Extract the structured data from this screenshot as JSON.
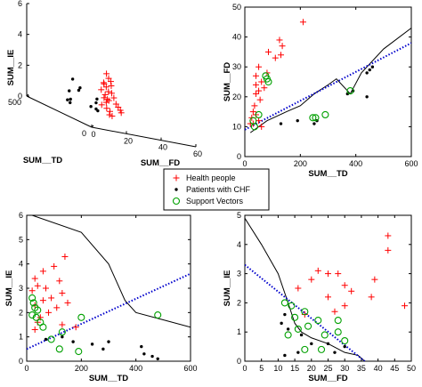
{
  "legend": {
    "entries": [
      {
        "label": "Health people",
        "marker": "plus",
        "color": "#ff0000"
      },
      {
        "label": "Patients with CHF",
        "marker": "dot",
        "color": "#000000"
      },
      {
        "label": "Support Vectors",
        "marker": "circle",
        "color": "#00a000"
      }
    ]
  },
  "chart_data": [
    {
      "type": "scatter",
      "panel": "3d",
      "xlabel": "SUM__TD",
      "ylabel": "SUM__FD",
      "zlabel": "SUM__IE",
      "xlim": [
        0,
        500
      ],
      "ylim": [
        0,
        60
      ],
      "zlim": [
        0,
        6
      ],
      "x_ticks": [
        "0",
        "500"
      ],
      "y_ticks": [
        "0",
        "20",
        "40",
        "60"
      ],
      "z_ticks": [
        "0",
        "2",
        "4",
        "6"
      ],
      "series": [
        {
          "name": "Health people",
          "points": [
            [
              20,
              10,
              3.6
            ],
            [
              30,
              12,
              3.3
            ],
            [
              15,
              8,
              3.0
            ],
            [
              40,
              14,
              3.1
            ],
            [
              25,
              9,
              2.9
            ],
            [
              35,
              11,
              2.7
            ],
            [
              50,
              15,
              2.8
            ],
            [
              20,
              7,
              2.5
            ],
            [
              45,
              13,
              2.4
            ],
            [
              30,
              10,
              2.2
            ],
            [
              60,
              16,
              2.3
            ],
            [
              25,
              9,
              2.0
            ],
            [
              40,
              12,
              1.9
            ],
            [
              70,
              18,
              2.0
            ],
            [
              35,
              11,
              1.7
            ],
            [
              55,
              14,
              1.8
            ],
            [
              30,
              8,
              1.5
            ],
            [
              80,
              20,
              1.6
            ],
            [
              45,
              12,
              1.3
            ],
            [
              90,
              22,
              1.4
            ],
            [
              60,
              15,
              1.1
            ],
            [
              100,
              24,
              1.2
            ],
            [
              50,
              14,
              0.9
            ],
            [
              120,
              26,
              1.0
            ],
            [
              70,
              17,
              0.8
            ]
          ]
        },
        {
          "name": "Patients with CHF",
          "points": [
            [
              280,
              10,
              2.2
            ],
            [
              250,
              12,
              1.8
            ],
            [
              300,
              15,
              1.5
            ],
            [
              200,
              18,
              1.4
            ],
            [
              320,
              11,
              1.3
            ],
            [
              260,
              22,
              1.0
            ],
            [
              350,
              14,
              0.7
            ],
            [
              220,
              20,
              0.6
            ],
            [
              400,
              16,
              0.5
            ],
            [
              300,
              25,
              0.5
            ],
            [
              380,
              28,
              0.4
            ],
            [
              420,
              19,
              0.3
            ]
          ]
        }
      ]
    },
    {
      "type": "scatter",
      "panel": "SUM__FD vs SUM__TD",
      "xlabel": "SUM__TD",
      "ylabel": "SUM__FD",
      "xlim": [
        0,
        600
      ],
      "ylim": [
        0,
        50
      ],
      "x_ticks": [
        0,
        200,
        400,
        600
      ],
      "y_ticks": [
        0,
        10,
        20,
        30,
        40,
        50
      ],
      "series": [
        {
          "name": "Health people",
          "points": [
            [
              210,
              45
            ],
            [
              125,
              39
            ],
            [
              135,
              37
            ],
            [
              85,
              35
            ],
            [
              130,
              34
            ],
            [
              110,
              33
            ],
            [
              50,
              30
            ],
            [
              80,
              28
            ],
            [
              40,
              27
            ],
            [
              60,
              25
            ],
            [
              40,
              24
            ],
            [
              70,
              23
            ],
            [
              50,
              22
            ],
            [
              40,
              21
            ],
            [
              55,
              19
            ],
            [
              35,
              17
            ],
            [
              30,
              15
            ],
            [
              40,
              14
            ],
            [
              25,
              13
            ],
            [
              50,
              12
            ],
            [
              30,
              11
            ],
            [
              20,
              11
            ],
            [
              60,
              10
            ]
          ]
        },
        {
          "name": "Patients with CHF",
          "points": [
            [
              460,
              30
            ],
            [
              450,
              29
            ],
            [
              440,
              28
            ],
            [
              390,
              22
            ],
            [
              440,
              20
            ],
            [
              370,
              21
            ],
            [
              190,
              12
            ],
            [
              260,
              12
            ],
            [
              250,
              11
            ],
            [
              130,
              11
            ]
          ]
        },
        {
          "name": "Support Vectors",
          "points": [
            [
              75,
              27
            ],
            [
              80,
              26
            ],
            [
              85,
              25
            ],
            [
              380,
              22
            ],
            [
              290,
              14
            ],
            [
              255,
              13
            ],
            [
              245,
              13
            ],
            [
              50,
              14
            ],
            [
              30,
              12
            ],
            [
              35,
              10
            ]
          ]
        }
      ],
      "lines": [
        {
          "style": "solid",
          "points": [
            [
              20,
              8
            ],
            [
              80,
              12
            ],
            [
              150,
              15
            ],
            [
              200,
              17
            ],
            [
              250,
              21
            ],
            [
              300,
              24
            ],
            [
              330,
              26
            ],
            [
              380,
              21
            ],
            [
              420,
              28
            ],
            [
              500,
              36
            ],
            [
              600,
              43
            ]
          ]
        },
        {
          "style": "dotted",
          "color": "#0000cc",
          "points": [
            [
              0,
              9
            ],
            [
              600,
              38
            ]
          ]
        }
      ]
    },
    {
      "type": "scatter",
      "panel": "SUM__IE vs SUM__TD",
      "xlabel": "SUM__TD",
      "ylabel": "SUM__IE",
      "xlim": [
        0,
        600
      ],
      "ylim": [
        0,
        6
      ],
      "x_ticks": [
        0,
        200,
        400,
        600
      ],
      "y_ticks": [
        0,
        1,
        2,
        3,
        4,
        5,
        6
      ],
      "series": [
        {
          "name": "Health people",
          "points": [
            [
              140,
              4.3
            ],
            [
              100,
              3.9
            ],
            [
              60,
              3.7
            ],
            [
              30,
              3.4
            ],
            [
              120,
              3.3
            ],
            [
              40,
              3.1
            ],
            [
              70,
              3.0
            ],
            [
              130,
              2.8
            ],
            [
              20,
              2.9
            ],
            [
              90,
              2.6
            ],
            [
              60,
              2.5
            ],
            [
              150,
              2.4
            ],
            [
              30,
              2.3
            ],
            [
              110,
              2.2
            ],
            [
              80,
              2.0
            ],
            [
              50,
              1.8
            ],
            [
              40,
              1.6
            ],
            [
              130,
              1.5
            ],
            [
              180,
              1.4
            ],
            [
              30,
              1.3
            ]
          ]
        },
        {
          "name": "Patients with CHF",
          "points": [
            [
              130,
              1.0
            ],
            [
              70,
              0.9
            ],
            [
              170,
              0.8
            ],
            [
              300,
              0.8
            ],
            [
              240,
              0.7
            ],
            [
              280,
              0.5
            ],
            [
              420,
              0.6
            ],
            [
              430,
              0.3
            ],
            [
              460,
              0.2
            ],
            [
              480,
              0.1
            ]
          ]
        },
        {
          "name": "Support Vectors",
          "points": [
            [
              20,
              2.6
            ],
            [
              25,
              2.4
            ],
            [
              30,
              2.2
            ],
            [
              40,
              2.1
            ],
            [
              20,
              1.9
            ],
            [
              35,
              1.8
            ],
            [
              50,
              1.6
            ],
            [
              60,
              1.4
            ],
            [
              130,
              1.2
            ],
            [
              200,
              1.8
            ],
            [
              480,
              1.9
            ],
            [
              90,
              0.9
            ],
            [
              190,
              0.4
            ],
            [
              120,
              0.5
            ]
          ]
        }
      ],
      "lines": [
        {
          "style": "solid",
          "points": [
            [
              20,
              6
            ],
            [
              200,
              5.3
            ],
            [
              300,
              4.0
            ],
            [
              360,
              2.5
            ],
            [
              400,
              2.0
            ],
            [
              500,
              1.7
            ],
            [
              600,
              1.4
            ]
          ]
        },
        {
          "style": "dotted",
          "color": "#0000cc",
          "points": [
            [
              0,
              0.5
            ],
            [
              600,
              3.6
            ]
          ]
        }
      ]
    },
    {
      "type": "scatter",
      "panel": "SUM__IE vs SUM__FD",
      "xlabel": "SUM__FD",
      "ylabel": "SUM__IE",
      "xlim": [
        0,
        50
      ],
      "ylim": [
        0,
        5
      ],
      "x_ticks": [
        0,
        5,
        10,
        15,
        20,
        25,
        30,
        35,
        40,
        45,
        50
      ],
      "y_ticks": [
        0,
        1,
        2,
        3,
        4,
        5
      ],
      "series": [
        {
          "name": "Health people",
          "points": [
            [
              43,
              4.3
            ],
            [
              43,
              3.8
            ],
            [
              22,
              3.1
            ],
            [
              25,
              3.0
            ],
            [
              28,
              3.0
            ],
            [
              20,
              2.8
            ],
            [
              30,
              2.6
            ],
            [
              39,
              2.8
            ],
            [
              32,
              2.4
            ],
            [
              16,
              2.5
            ],
            [
              25,
              2.2
            ],
            [
              38,
              2.2
            ],
            [
              30,
              1.9
            ],
            [
              48,
              1.9
            ],
            [
              18,
              1.6
            ],
            [
              27,
              1.7
            ]
          ]
        },
        {
          "name": "Patients with CHF",
          "points": [
            [
              12,
              1.6
            ],
            [
              11,
              1.3
            ],
            [
              13,
              1.1
            ],
            [
              17,
              0.9
            ],
            [
              20,
              0.6
            ],
            [
              25,
              0.6
            ],
            [
              30,
              0.5
            ],
            [
              27,
              0.3
            ],
            [
              16,
              0.3
            ],
            [
              12,
              0.2
            ]
          ]
        },
        {
          "name": "Support Vectors",
          "points": [
            [
              12,
              2.0
            ],
            [
              14,
              1.9
            ],
            [
              18,
              1.7
            ],
            [
              15,
              1.5
            ],
            [
              19,
              1.2
            ],
            [
              13,
              0.9
            ],
            [
              22,
              1.4
            ],
            [
              28,
              1.4
            ],
            [
              16,
              1.1
            ],
            [
              24,
              0.9
            ],
            [
              30,
              0.7
            ],
            [
              18,
              0.4
            ],
            [
              23,
              0.4
            ],
            [
              28,
              1.0
            ]
          ]
        }
      ],
      "lines": [
        {
          "style": "solid",
          "points": [
            [
              0,
              4.9
            ],
            [
              5,
              4.0
            ],
            [
              10,
              3.0
            ],
            [
              13,
              2.0
            ],
            [
              15,
              1.3
            ],
            [
              17,
              1.0
            ],
            [
              20,
              0.8
            ],
            [
              25,
              0.6
            ],
            [
              30,
              0.3
            ],
            [
              34,
              0.2
            ],
            [
              36,
              0.0
            ]
          ]
        },
        {
          "style": "dotted",
          "color": "#0000cc",
          "points": [
            [
              0,
              3.3
            ],
            [
              36,
              0.0
            ]
          ]
        }
      ]
    }
  ]
}
